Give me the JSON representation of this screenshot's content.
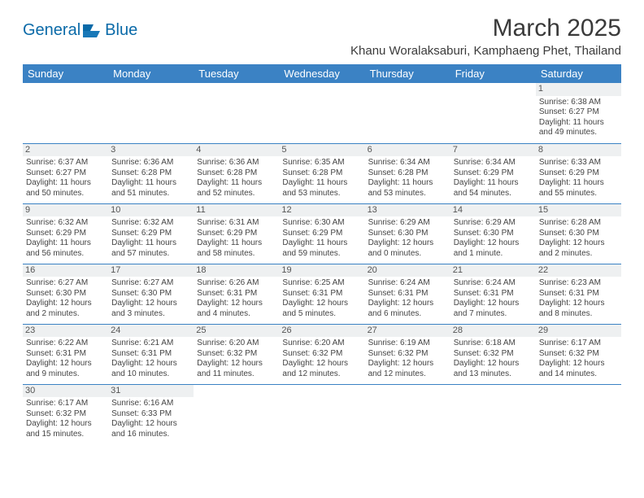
{
  "brand": {
    "name1": "General",
    "name2": "Blue"
  },
  "title": "March 2025",
  "subtitle": "Khanu Woralaksaburi, Kamphaeng Phet, Thailand",
  "colors": {
    "header_bg": "#3b82c4",
    "header_text": "#ffffff",
    "brand_text": "#0a6aa8",
    "daynum_bg": "#eef0f1",
    "border": "#3b82c4"
  },
  "columns": [
    "Sunday",
    "Monday",
    "Tuesday",
    "Wednesday",
    "Thursday",
    "Friday",
    "Saturday"
  ],
  "weeks": [
    [
      {
        "n": "",
        "sr": "",
        "ss": "",
        "dl": ""
      },
      {
        "n": "",
        "sr": "",
        "ss": "",
        "dl": ""
      },
      {
        "n": "",
        "sr": "",
        "ss": "",
        "dl": ""
      },
      {
        "n": "",
        "sr": "",
        "ss": "",
        "dl": ""
      },
      {
        "n": "",
        "sr": "",
        "ss": "",
        "dl": ""
      },
      {
        "n": "",
        "sr": "",
        "ss": "",
        "dl": ""
      },
      {
        "n": "1",
        "sr": "Sunrise: 6:38 AM",
        "ss": "Sunset: 6:27 PM",
        "dl": "Daylight: 11 hours and 49 minutes."
      }
    ],
    [
      {
        "n": "2",
        "sr": "Sunrise: 6:37 AM",
        "ss": "Sunset: 6:27 PM",
        "dl": "Daylight: 11 hours and 50 minutes."
      },
      {
        "n": "3",
        "sr": "Sunrise: 6:36 AM",
        "ss": "Sunset: 6:28 PM",
        "dl": "Daylight: 11 hours and 51 minutes."
      },
      {
        "n": "4",
        "sr": "Sunrise: 6:36 AM",
        "ss": "Sunset: 6:28 PM",
        "dl": "Daylight: 11 hours and 52 minutes."
      },
      {
        "n": "5",
        "sr": "Sunrise: 6:35 AM",
        "ss": "Sunset: 6:28 PM",
        "dl": "Daylight: 11 hours and 53 minutes."
      },
      {
        "n": "6",
        "sr": "Sunrise: 6:34 AM",
        "ss": "Sunset: 6:28 PM",
        "dl": "Daylight: 11 hours and 53 minutes."
      },
      {
        "n": "7",
        "sr": "Sunrise: 6:34 AM",
        "ss": "Sunset: 6:29 PM",
        "dl": "Daylight: 11 hours and 54 minutes."
      },
      {
        "n": "8",
        "sr": "Sunrise: 6:33 AM",
        "ss": "Sunset: 6:29 PM",
        "dl": "Daylight: 11 hours and 55 minutes."
      }
    ],
    [
      {
        "n": "9",
        "sr": "Sunrise: 6:32 AM",
        "ss": "Sunset: 6:29 PM",
        "dl": "Daylight: 11 hours and 56 minutes."
      },
      {
        "n": "10",
        "sr": "Sunrise: 6:32 AM",
        "ss": "Sunset: 6:29 PM",
        "dl": "Daylight: 11 hours and 57 minutes."
      },
      {
        "n": "11",
        "sr": "Sunrise: 6:31 AM",
        "ss": "Sunset: 6:29 PM",
        "dl": "Daylight: 11 hours and 58 minutes."
      },
      {
        "n": "12",
        "sr": "Sunrise: 6:30 AM",
        "ss": "Sunset: 6:29 PM",
        "dl": "Daylight: 11 hours and 59 minutes."
      },
      {
        "n": "13",
        "sr": "Sunrise: 6:29 AM",
        "ss": "Sunset: 6:30 PM",
        "dl": "Daylight: 12 hours and 0 minutes."
      },
      {
        "n": "14",
        "sr": "Sunrise: 6:29 AM",
        "ss": "Sunset: 6:30 PM",
        "dl": "Daylight: 12 hours and 1 minute."
      },
      {
        "n": "15",
        "sr": "Sunrise: 6:28 AM",
        "ss": "Sunset: 6:30 PM",
        "dl": "Daylight: 12 hours and 2 minutes."
      }
    ],
    [
      {
        "n": "16",
        "sr": "Sunrise: 6:27 AM",
        "ss": "Sunset: 6:30 PM",
        "dl": "Daylight: 12 hours and 2 minutes."
      },
      {
        "n": "17",
        "sr": "Sunrise: 6:27 AM",
        "ss": "Sunset: 6:30 PM",
        "dl": "Daylight: 12 hours and 3 minutes."
      },
      {
        "n": "18",
        "sr": "Sunrise: 6:26 AM",
        "ss": "Sunset: 6:31 PM",
        "dl": "Daylight: 12 hours and 4 minutes."
      },
      {
        "n": "19",
        "sr": "Sunrise: 6:25 AM",
        "ss": "Sunset: 6:31 PM",
        "dl": "Daylight: 12 hours and 5 minutes."
      },
      {
        "n": "20",
        "sr": "Sunrise: 6:24 AM",
        "ss": "Sunset: 6:31 PM",
        "dl": "Daylight: 12 hours and 6 minutes."
      },
      {
        "n": "21",
        "sr": "Sunrise: 6:24 AM",
        "ss": "Sunset: 6:31 PM",
        "dl": "Daylight: 12 hours and 7 minutes."
      },
      {
        "n": "22",
        "sr": "Sunrise: 6:23 AM",
        "ss": "Sunset: 6:31 PM",
        "dl": "Daylight: 12 hours and 8 minutes."
      }
    ],
    [
      {
        "n": "23",
        "sr": "Sunrise: 6:22 AM",
        "ss": "Sunset: 6:31 PM",
        "dl": "Daylight: 12 hours and 9 minutes."
      },
      {
        "n": "24",
        "sr": "Sunrise: 6:21 AM",
        "ss": "Sunset: 6:31 PM",
        "dl": "Daylight: 12 hours and 10 minutes."
      },
      {
        "n": "25",
        "sr": "Sunrise: 6:20 AM",
        "ss": "Sunset: 6:32 PM",
        "dl": "Daylight: 12 hours and 11 minutes."
      },
      {
        "n": "26",
        "sr": "Sunrise: 6:20 AM",
        "ss": "Sunset: 6:32 PM",
        "dl": "Daylight: 12 hours and 12 minutes."
      },
      {
        "n": "27",
        "sr": "Sunrise: 6:19 AM",
        "ss": "Sunset: 6:32 PM",
        "dl": "Daylight: 12 hours and 12 minutes."
      },
      {
        "n": "28",
        "sr": "Sunrise: 6:18 AM",
        "ss": "Sunset: 6:32 PM",
        "dl": "Daylight: 12 hours and 13 minutes."
      },
      {
        "n": "29",
        "sr": "Sunrise: 6:17 AM",
        "ss": "Sunset: 6:32 PM",
        "dl": "Daylight: 12 hours and 14 minutes."
      }
    ],
    [
      {
        "n": "30",
        "sr": "Sunrise: 6:17 AM",
        "ss": "Sunset: 6:32 PM",
        "dl": "Daylight: 12 hours and 15 minutes."
      },
      {
        "n": "31",
        "sr": "Sunrise: 6:16 AM",
        "ss": "Sunset: 6:33 PM",
        "dl": "Daylight: 12 hours and 16 minutes."
      },
      {
        "n": "",
        "sr": "",
        "ss": "",
        "dl": ""
      },
      {
        "n": "",
        "sr": "",
        "ss": "",
        "dl": ""
      },
      {
        "n": "",
        "sr": "",
        "ss": "",
        "dl": ""
      },
      {
        "n": "",
        "sr": "",
        "ss": "",
        "dl": ""
      },
      {
        "n": "",
        "sr": "",
        "ss": "",
        "dl": ""
      }
    ]
  ]
}
